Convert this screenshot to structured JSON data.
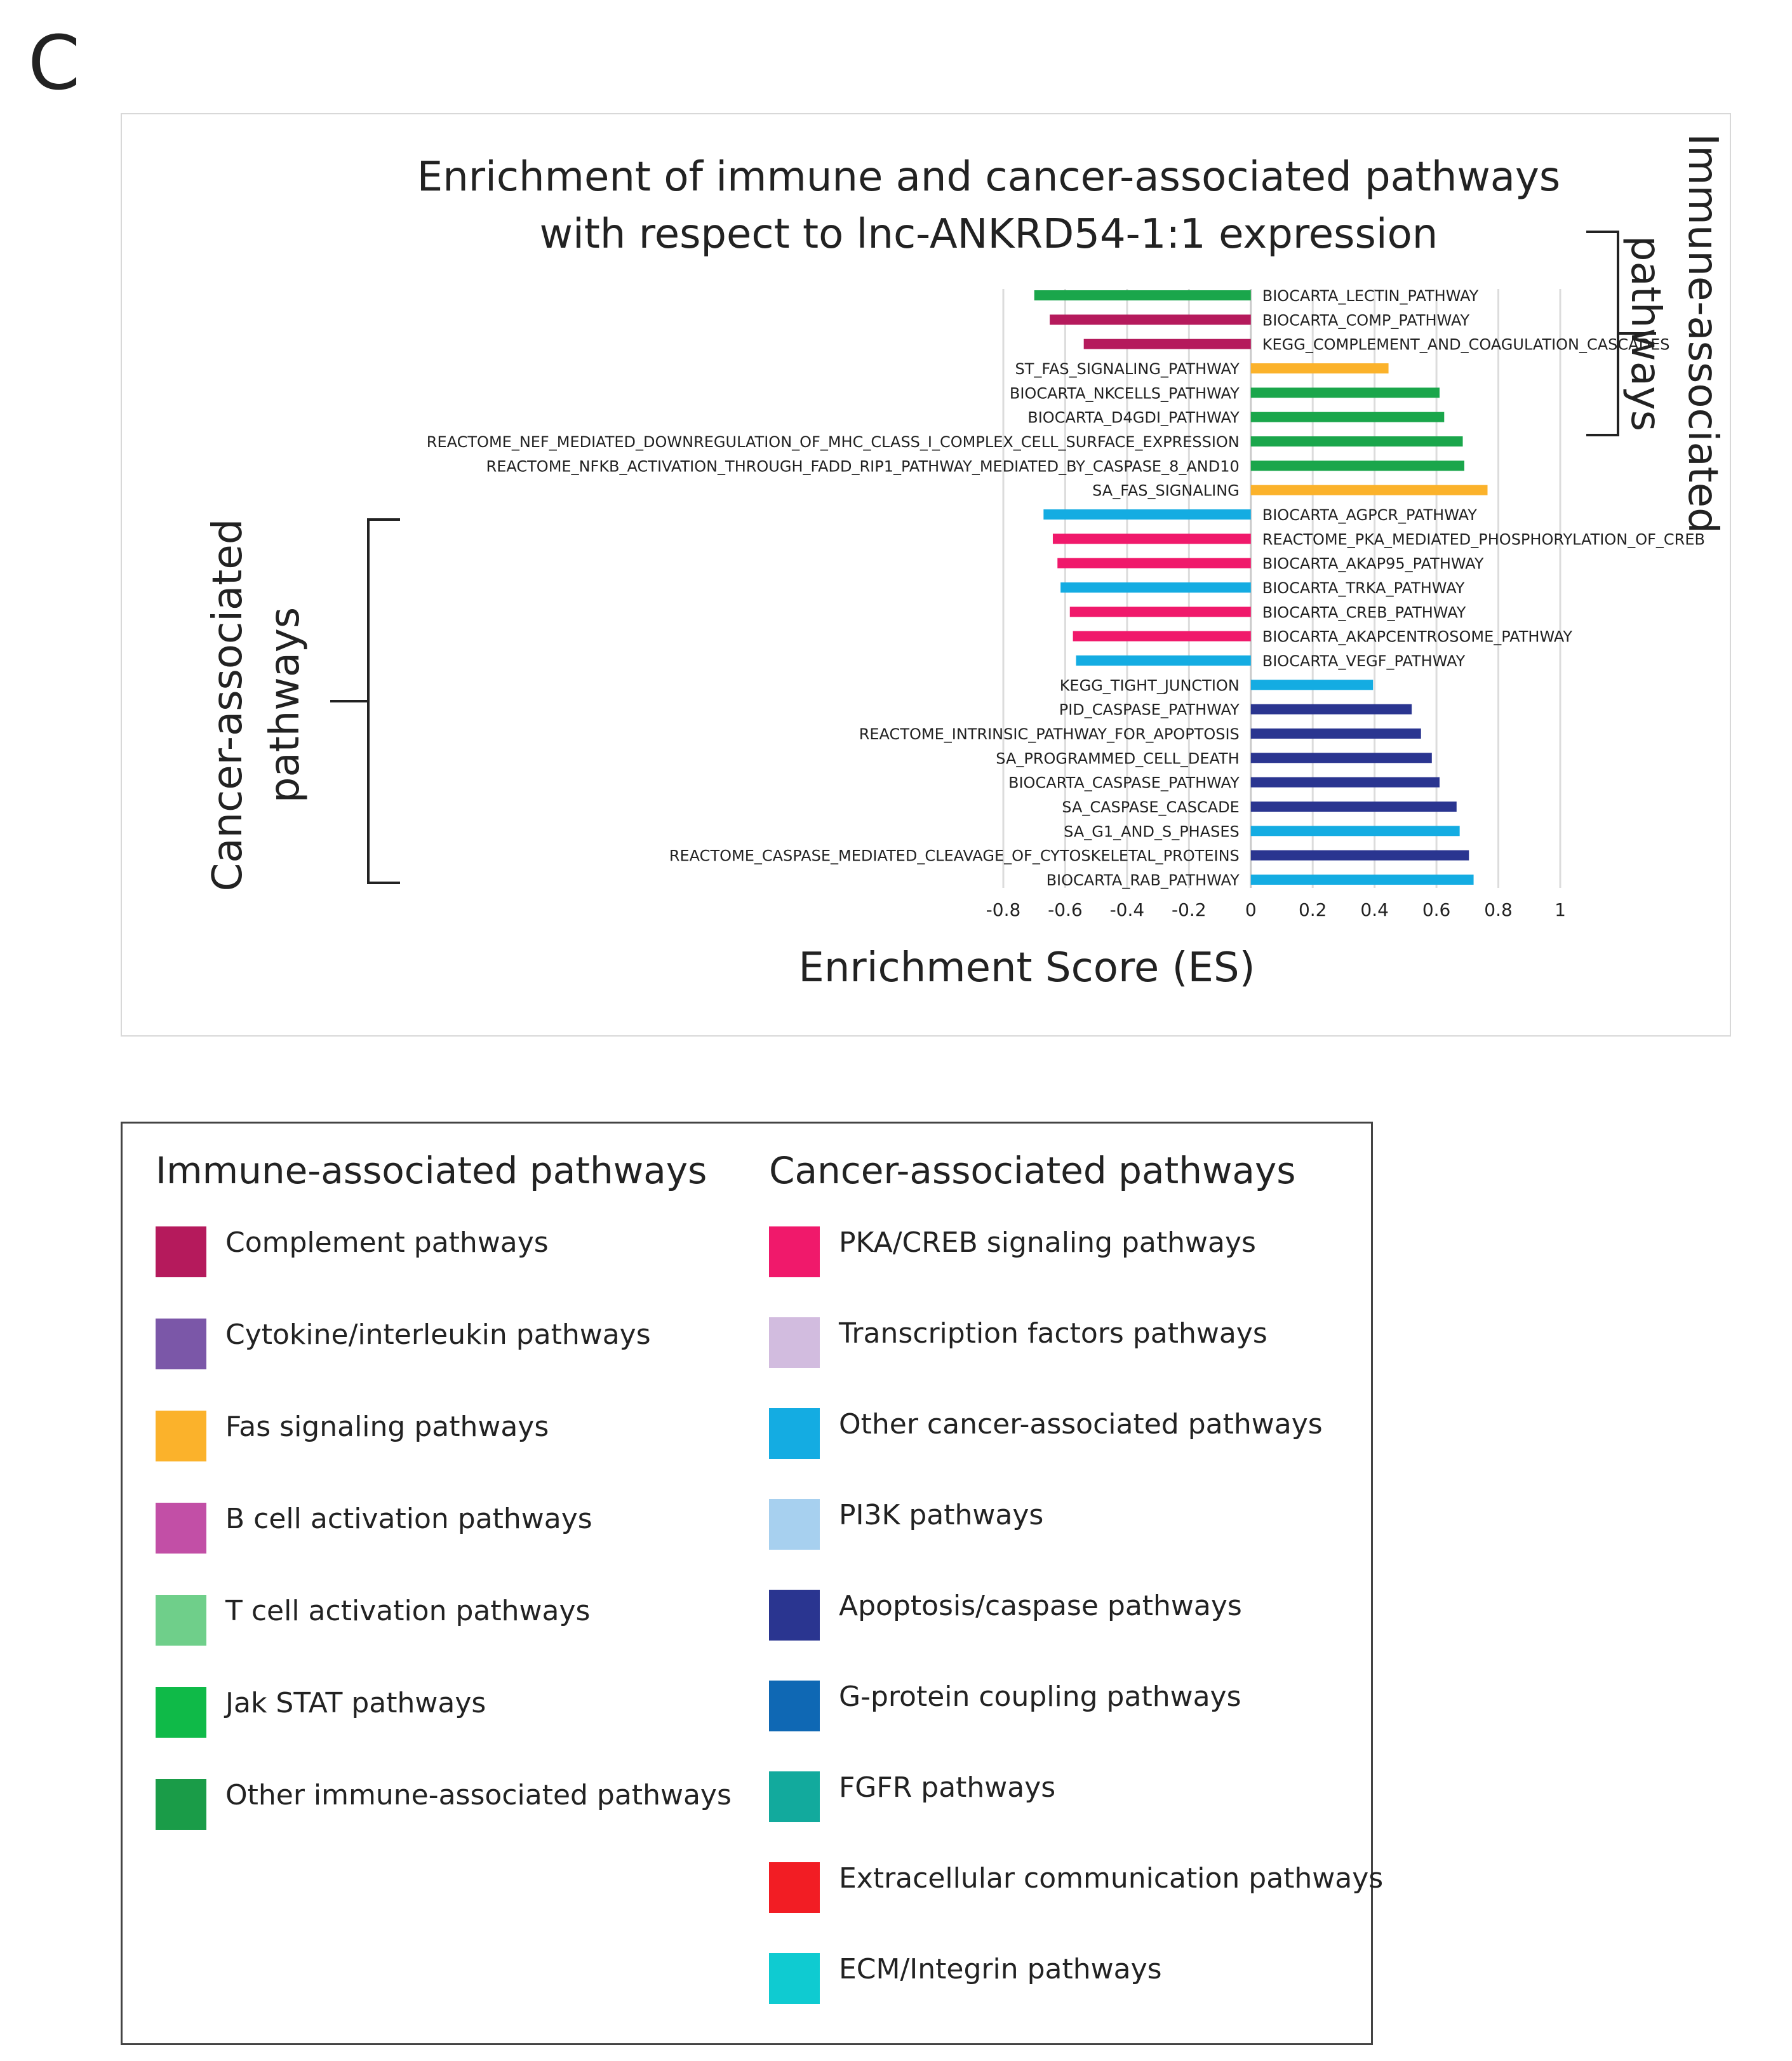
{
  "panel_label": "C",
  "chart_data": {
    "type": "bar",
    "orientation": "horizontal",
    "title": "Enrichment of immune and cancer-associated pathways with respect to lnc-ANKRD54-1:1 expression",
    "title_lines": [
      "Enrichment of immune and cancer-associated pathways",
      "with respect to lnc-ANKRD54-1:1 expression"
    ],
    "xlabel": "Enrichment Score (ES)",
    "xlim": [
      -0.8,
      1
    ],
    "xticks": [
      -0.8,
      -0.6,
      -0.4,
      -0.2,
      0,
      0.2,
      0.4,
      0.6,
      0.8,
      1
    ],
    "xtick_labels": [
      "-0.8",
      "-0.6",
      "-0.4",
      "-0.2",
      "0",
      "0.2",
      "0.4",
      "0.6",
      "0.8",
      "1"
    ],
    "grid": true,
    "bars": [
      {
        "label": "BIOCARTA_LECTIN_PATHWAY",
        "value": -0.7,
        "color": "#1aa64b"
      },
      {
        "label": "BIOCARTA_COMP_PATHWAY",
        "value": -0.65,
        "color": "#b51a5c"
      },
      {
        "label": "KEGG_COMPLEMENT_AND_COAGULATION_CASCADES",
        "value": -0.54,
        "color": "#b51a5c"
      },
      {
        "label": "ST_FAS_SIGNALING_PATHWAY",
        "value": 0.445,
        "color": "#fbb22b"
      },
      {
        "label": "BIOCARTA_NKCELLS_PATHWAY",
        "value": 0.61,
        "color": "#1aa64b"
      },
      {
        "label": "BIOCARTA_D4GDI_PATHWAY",
        "value": 0.625,
        "color": "#1aa64b"
      },
      {
        "label": "REACTOME_NEF_MEDIATED_DOWNREGULATION_OF_MHC_CLASS_I_COMPLEX_CELL_SURFACE_EXPRESSION",
        "value": 0.685,
        "color": "#1aa64b"
      },
      {
        "label": "REACTOME_NFKB_ACTIVATION_THROUGH_FADD_RIP1_PATHWAY_MEDIATED_BY_CASPASE_8_AND10",
        "value": 0.69,
        "color": "#1aa64b"
      },
      {
        "label": "SA_FAS_SIGNALING",
        "value": 0.765,
        "color": "#fbb22b"
      },
      {
        "label": "BIOCARTA_AGPCR_PATHWAY",
        "value": -0.67,
        "color": "#14ace2"
      },
      {
        "label": "REACTOME_PKA_MEDIATED_PHOSPHORYLATION_OF_CREB",
        "value": -0.64,
        "color": "#f0196b"
      },
      {
        "label": "BIOCARTA_AKAP95_PATHWAY",
        "value": -0.625,
        "color": "#f0196b"
      },
      {
        "label": "BIOCARTA_TRKA_PATHWAY",
        "value": -0.615,
        "color": "#14ace2"
      },
      {
        "label": "BIOCARTA_CREB_PATHWAY",
        "value": -0.585,
        "color": "#f0196b"
      },
      {
        "label": "BIOCARTA_AKAPCENTROSOME_PATHWAY",
        "value": -0.575,
        "color": "#f0196b"
      },
      {
        "label": "BIOCARTA_VEGF_PATHWAY",
        "value": -0.565,
        "color": "#14ace2"
      },
      {
        "label": "KEGG_TIGHT_JUNCTION",
        "value": 0.395,
        "color": "#14ace2"
      },
      {
        "label": "PID_CASPASE_PATHWAY",
        "value": 0.52,
        "color": "#2a3590"
      },
      {
        "label": "REACTOME_INTRINSIC_PATHWAY_FOR_APOPTOSIS",
        "value": 0.55,
        "color": "#2a3590"
      },
      {
        "label": "SA_PROGRAMMED_CELL_DEATH",
        "value": 0.585,
        "color": "#2a3590"
      },
      {
        "label": "BIOCARTA_CASPASE_PATHWAY",
        "value": 0.61,
        "color": "#2a3590"
      },
      {
        "label": "SA_CASPASE_CASCADE",
        "value": 0.665,
        "color": "#2a3590"
      },
      {
        "label": "SA_G1_AND_S_PHASES",
        "value": 0.675,
        "color": "#14ace2"
      },
      {
        "label": "REACTOME_CASPASE_MEDIATED_CLEAVAGE_OF_CYTOSKELETAL_PROTEINS",
        "value": 0.705,
        "color": "#2a3590"
      },
      {
        "label": "BIOCARTA_RAB_PATHWAY",
        "value": 0.72,
        "color": "#14ace2"
      }
    ],
    "groups": [
      {
        "lines": [
          "Immune-associated",
          "pathways"
        ],
        "side": "right",
        "first": 0,
        "last": 8
      },
      {
        "lines": [
          "Cancer-associated",
          "pathways"
        ],
        "side": "left",
        "first": 9,
        "last": 24
      }
    ]
  },
  "legend": {
    "immune_heading": "Immune-associated pathways",
    "cancer_heading": "Cancer-associated pathways",
    "immune": [
      {
        "label": "Complement pathways",
        "color": "#b51a5c"
      },
      {
        "label": "Cytokine/interleukin pathways",
        "color": "#7b57a8"
      },
      {
        "label": "Fas signaling pathways",
        "color": "#fbb22b"
      },
      {
        "label": "B cell activation pathways",
        "color": "#c24fa6"
      },
      {
        "label": "T cell activation pathways",
        "color": "#6fcf8a"
      },
      {
        "label": "Jak STAT pathways",
        "color": "#0fba48"
      },
      {
        "label": "Other immune-associated pathways",
        "color": "#1a9c48"
      }
    ],
    "cancer": [
      {
        "label": "PKA/CREB signaling pathways",
        "color": "#f0196b"
      },
      {
        "label": "Transcription factors pathways",
        "color": "#d2bcdf"
      },
      {
        "label": "Other cancer-associated pathways",
        "color": "#14ace2"
      },
      {
        "label": "PI3K pathways",
        "color": "#a7d0ef"
      },
      {
        "label": "Apoptosis/caspase pathways",
        "color": "#2a3590"
      },
      {
        "label": "G-protein coupling pathways",
        "color": "#0f68b4"
      },
      {
        "label": "FGFR pathways",
        "color": "#12aa9d"
      },
      {
        "label": "Extracellular communication pathways",
        "color": "#f21d24"
      },
      {
        "label": "ECM/Integrin pathways",
        "color": "#0fcbd1"
      }
    ]
  }
}
